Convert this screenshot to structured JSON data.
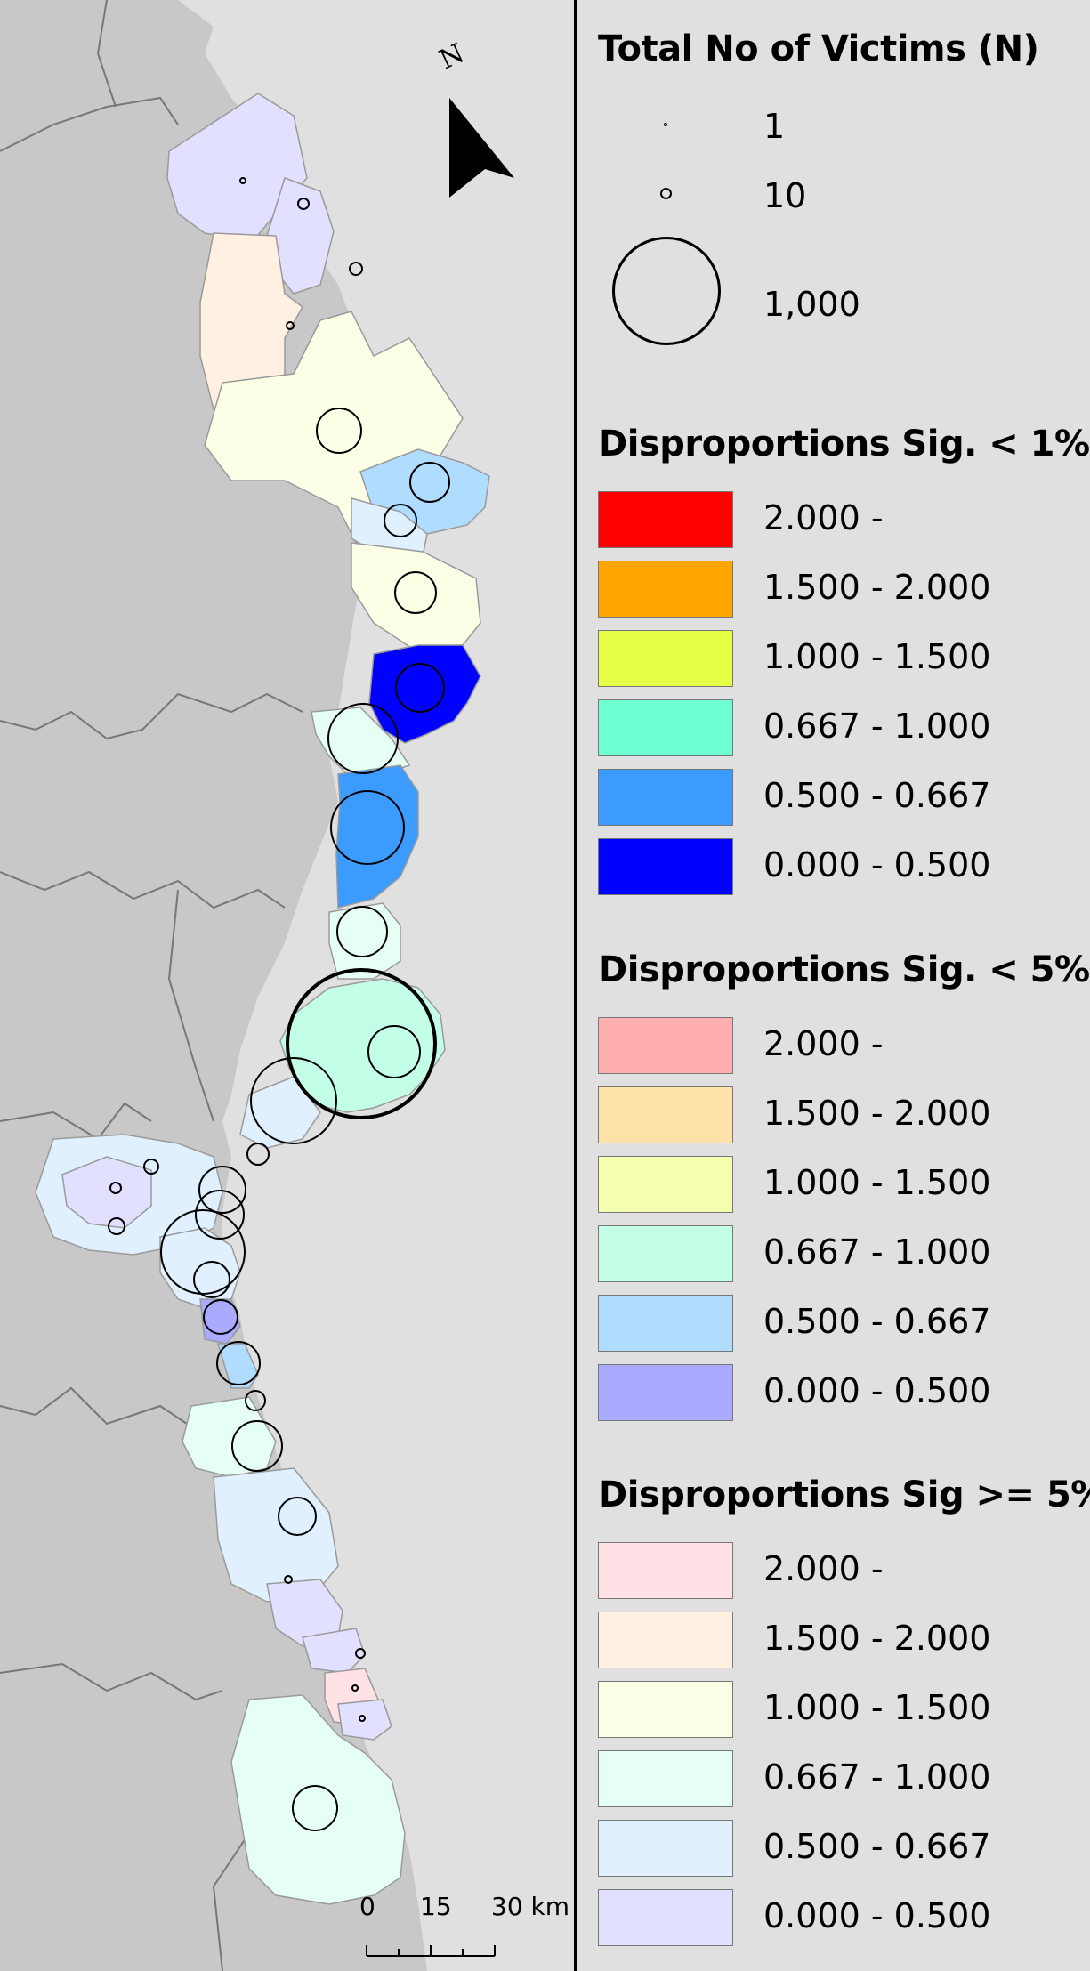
{
  "map": {
    "north_label": "N",
    "scale_bar": {
      "ticks": [
        "0",
        "15",
        "30 km"
      ]
    }
  },
  "legend": {
    "victims": {
      "title": "Total No of Victims (N)",
      "entries": [
        {
          "label": "1",
          "value": 1
        },
        {
          "label": "10",
          "value": 10
        },
        {
          "label": "1,000",
          "value": 1000
        }
      ]
    },
    "groups": [
      {
        "title": "Disproportions Sig. < 1%",
        "entries": [
          {
            "label": "2.000 -",
            "color": "#ff0000"
          },
          {
            "label": "1.500 - 2.000",
            "color": "#ffa500"
          },
          {
            "label": "1.000 - 1.500",
            "color": "#e6ff46"
          },
          {
            "label": "0.667 - 1.000",
            "color": "#6effd2"
          },
          {
            "label": "0.500 - 0.667",
            "color": "#3c9bff"
          },
          {
            "label": "0.000 - 0.500",
            "color": "#0000ff"
          }
        ]
      },
      {
        "title": "Disproportions Sig. < 5%",
        "entries": [
          {
            "label": "2.000 -",
            "color": "#ffafaf"
          },
          {
            "label": "1.500 - 2.000",
            "color": "#ffe1aa"
          },
          {
            "label": "1.000 - 1.500",
            "color": "#f5ffaf"
          },
          {
            "label": "0.667 - 1.000",
            "color": "#c3ffe6"
          },
          {
            "label": "0.500 - 0.667",
            "color": "#afdcff"
          },
          {
            "label": "0.000 - 0.500",
            "color": "#aaaaff"
          }
        ]
      },
      {
        "title": "Disproportions Sig >= 5%",
        "entries": [
          {
            "label": "2.000 -",
            "color": "#ffe1e6"
          },
          {
            "label": "1.500 - 2.000",
            "color": "#fff0e1"
          },
          {
            "label": "1.000 - 1.500",
            "color": "#faffe6"
          },
          {
            "label": "0.667 - 1.000",
            "color": "#e6fff5"
          },
          {
            "label": "0.500 - 0.667",
            "color": "#e1f0ff"
          },
          {
            "label": "0.000 - 0.500",
            "color": "#e1e1ff"
          }
        ]
      }
    ]
  }
}
